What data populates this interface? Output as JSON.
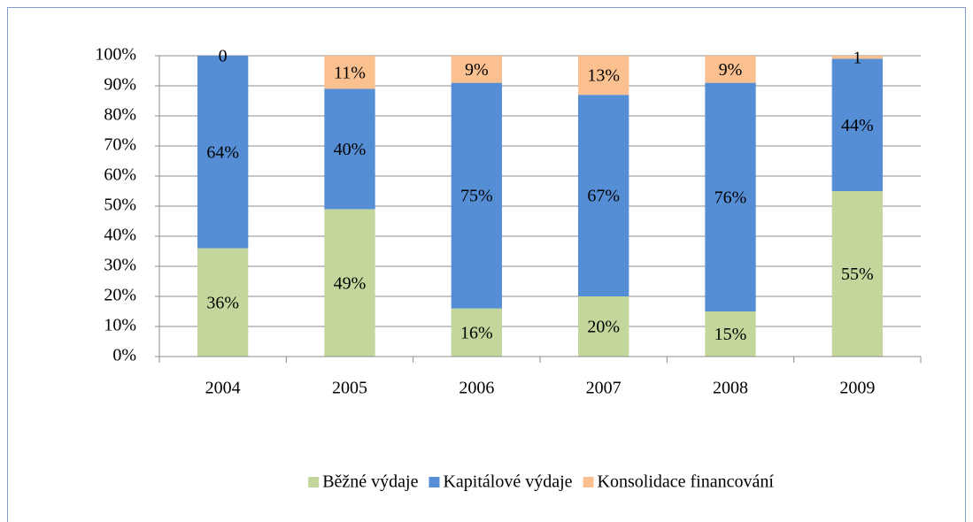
{
  "chart_data": {
    "type": "stacked_bar",
    "categories": [
      "2004",
      "2005",
      "2006",
      "2007",
      "2008",
      "2009"
    ],
    "series": [
      {
        "name": "Běžné výdaje",
        "color": "#c3d69b",
        "values": [
          36,
          49,
          16,
          20,
          15,
          55
        ],
        "value_labels": [
          "36%",
          "49%",
          "16%",
          "20%",
          "15%",
          "55%"
        ]
      },
      {
        "name": "Kapitálové výdaje",
        "color": "#558ed5",
        "values": [
          64,
          40,
          75,
          67,
          76,
          44
        ],
        "value_labels": [
          "64%",
          "40%",
          "75%",
          "67%",
          "76%",
          "44%"
        ]
      },
      {
        "name": "Konsolidace financování",
        "color": "#fac090",
        "values": [
          0,
          11,
          9,
          13,
          9,
          1
        ],
        "value_labels": [
          "0",
          "11%",
          "9%",
          "13%",
          "9%",
          "1"
        ]
      }
    ],
    "ylim": [
      0,
      100
    ],
    "yticks": [
      {
        "value": 0,
        "label": "0%"
      },
      {
        "value": 10,
        "label": "10%"
      },
      {
        "value": 20,
        "label": "20%"
      },
      {
        "value": 30,
        "label": "30%"
      },
      {
        "value": 40,
        "label": "40%"
      },
      {
        "value": 50,
        "label": "50%"
      },
      {
        "value": 60,
        "label": "60%"
      },
      {
        "value": 70,
        "label": "70%"
      },
      {
        "value": 80,
        "label": "80%"
      },
      {
        "value": 90,
        "label": "90%"
      },
      {
        "value": 100,
        "label": "100%"
      }
    ],
    "grid": true,
    "legend": "bottom"
  }
}
